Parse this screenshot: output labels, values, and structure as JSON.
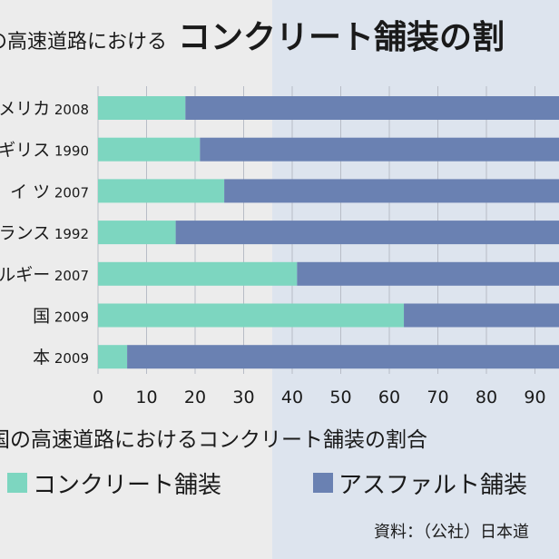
{
  "title": {
    "small": "の高速道路における",
    "big": "コンクリート舗装の割"
  },
  "caption": "国の高速道路におけるコンクリート舗装の割合",
  "source": "資料：（公社）日本道",
  "colors": {
    "concrete": "#7dd6c0",
    "asphalt": "#6a81b2",
    "grid": "#b8bcc6"
  },
  "chart_data": {
    "type": "bar",
    "orientation": "horizontal",
    "stacked": true,
    "categories": [
      {
        "country": "メリカ",
        "year": "2008"
      },
      {
        "country": "ギリス",
        "year": "1990"
      },
      {
        "country": "イ ツ",
        "year": "2007"
      },
      {
        "country": "ランス",
        "year": "1992"
      },
      {
        "country": "ルギー",
        "year": "2007"
      },
      {
        "country": "国",
        "year": "2009"
      },
      {
        "country": "本",
        "year": "2009"
      }
    ],
    "series": [
      {
        "name": "コンクリート舗装",
        "color": "#7dd6c0",
        "values": [
          18,
          21,
          26,
          16,
          41,
          63,
          6
        ]
      },
      {
        "name": "アスファルト舗装",
        "color": "#6a81b2",
        "values": [
          82,
          79,
          74,
          84,
          59,
          37,
          94
        ]
      }
    ],
    "xlim": [
      0,
      100
    ],
    "xticks": [
      "0",
      "10",
      "20",
      "30",
      "40",
      "50",
      "60",
      "70",
      "80",
      "90"
    ],
    "grid": true,
    "legend_position": "bottom"
  }
}
